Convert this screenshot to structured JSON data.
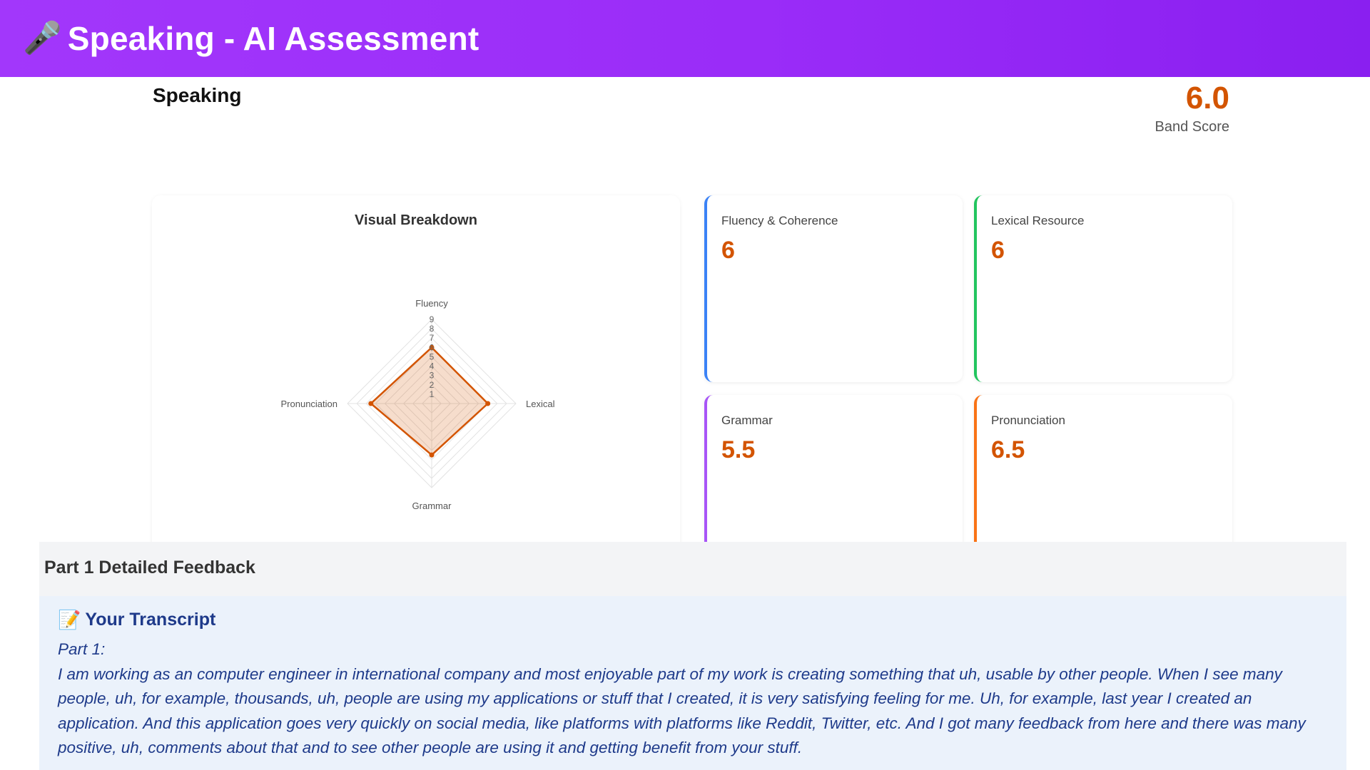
{
  "header": {
    "icon": "microphone-icon",
    "mic_glyph": "🎤",
    "title": "Speaking - AI Assessment"
  },
  "summary": {
    "section": "Speaking",
    "band_score": "6.0",
    "band_label": "Band Score"
  },
  "breakdown": {
    "title": "Visual Breakdown",
    "chart_data": {
      "type": "radar",
      "title": "Visual Breakdown",
      "axes": [
        "Fluency",
        "Lexical",
        "Grammar",
        "Pronunciation"
      ],
      "values": [
        6,
        6,
        5.5,
        6.5
      ],
      "scale_ticks": [
        "1",
        "2",
        "3",
        "4",
        "5",
        "6",
        "7",
        "8",
        "9"
      ],
      "rmax": 9,
      "color": "#d35400"
    }
  },
  "criteria": [
    {
      "label": "Fluency & Coherence",
      "value": "6",
      "accent": "#3b82f6"
    },
    {
      "label": "Lexical Resource",
      "value": "6",
      "accent": "#22c55e"
    },
    {
      "label": "Grammar",
      "value": "5.5",
      "accent": "#a855f7"
    },
    {
      "label": "Pronunciation",
      "value": "6.5",
      "accent": "#f97316"
    }
  ],
  "feedback": {
    "title": "Part 1 Detailed Feedback",
    "transcript_icon": "memo-icon",
    "memo_glyph": "📝",
    "transcript_title": "Your Transcript",
    "part_label": "Part 1:",
    "text": "I am working as an computer engineer in international company and most enjoyable part of my work is creating something that uh, usable by other people. When I see many people, uh, for example, thousands, uh, people are using my applications or stuff that I created, it is very satisfying feeling for me. Uh, for example, last year I created an application. And this application goes very quickly on social media, like platforms with platforms like Reddit, Twitter, etc. And I got many feedback from here and there was many positive, uh, comments about that and to see other people are using it and getting benefit from your stuff."
  }
}
